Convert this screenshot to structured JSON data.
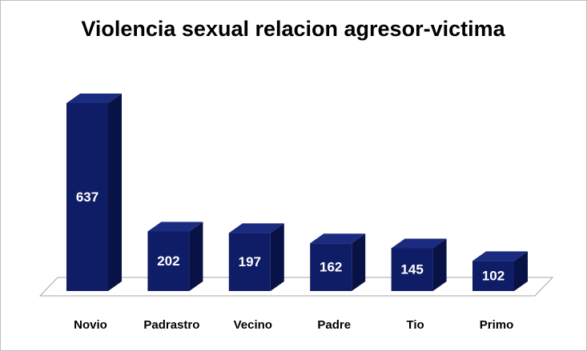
{
  "chart_data": {
    "type": "bar3d",
    "title": "Violencia sexual relacion agresor-victima",
    "categories": [
      "Novio",
      "Padrastro",
      "Vecino",
      "Padre",
      "Tio",
      "Primo"
    ],
    "values": [
      637,
      202,
      197,
      162,
      145,
      102
    ],
    "color": "#0f1d66"
  }
}
